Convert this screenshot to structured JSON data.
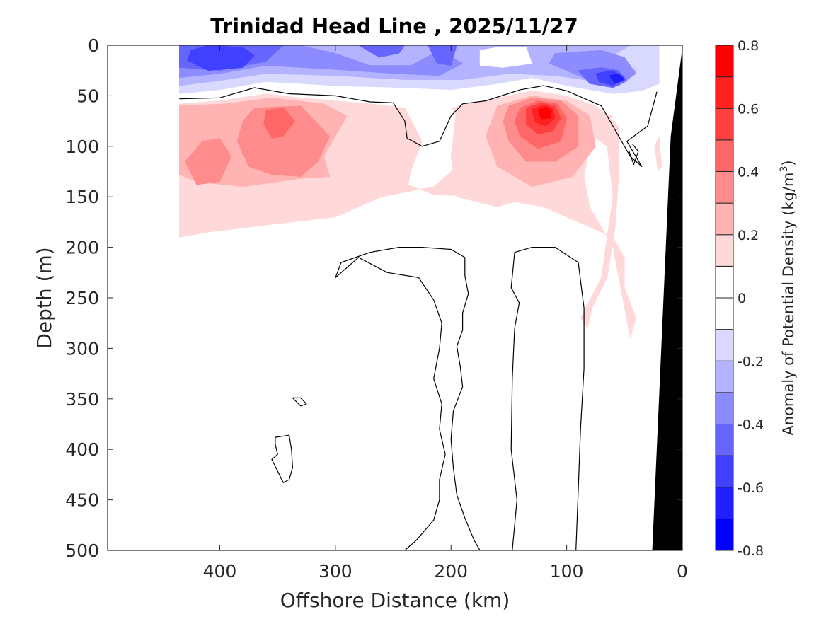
{
  "chart_data": {
    "type": "contourf",
    "title": "Trinidad Head Line , 2025/11/27",
    "xlabel": "Offshore Distance (km)",
    "ylabel": "Depth (m)",
    "xlim": [
      497,
      0
    ],
    "ylim": [
      0,
      500
    ],
    "x_reversed": true,
    "y_reversed": true,
    "xticks": [
      400,
      300,
      200,
      100,
      0
    ],
    "xtick_labels": [
      "400",
      "300",
      "200",
      "100",
      "0"
    ],
    "yticks": [
      0,
      50,
      100,
      150,
      200,
      250,
      300,
      350,
      400,
      450,
      500
    ],
    "ytick_labels": [
      "0",
      "50",
      "100",
      "150",
      "200",
      "250",
      "300",
      "350",
      "400",
      "450",
      "500"
    ],
    "colorbar": {
      "label": "Anomaly of Potential Density (kg/m",
      "label_superscript": "3",
      "label_close": ")",
      "range": [
        -0.8,
        0.8
      ],
      "levels": [
        -0.8,
        -0.7,
        -0.6,
        -0.5,
        -0.4,
        -0.3,
        -0.2,
        -0.1,
        0,
        0.1,
        0.2,
        0.3,
        0.4,
        0.5,
        0.6,
        0.7,
        0.8
      ],
      "ticks": [
        0.8,
        0.6,
        0.4,
        0.2,
        0,
        -0.2,
        -0.4,
        -0.6,
        -0.8
      ],
      "tick_labels": [
        "0.8",
        "0.6",
        "0.4",
        "0.2",
        "0",
        "-0.2",
        "-0.4",
        "-0.6",
        "-0.8"
      ],
      "colors": [
        "#0000ff",
        "#2020ff",
        "#4040ff",
        "#6666ff",
        "#8c8cff",
        "#b3b3ff",
        "#d9d9ff",
        "#ffffff",
        "#ffffff",
        "#ffd9d9",
        "#ffb3b3",
        "#ff8c8c",
        "#ff6666",
        "#ff4040",
        "#ff2020",
        "#ff0000"
      ]
    },
    "bathymetry_color": "#000000",
    "zero_contour_color": "#000000",
    "regions": [
      {
        "name": "surface-negative-anomaly",
        "value_range": [
          -0.6,
          -0.1
        ],
        "depth_range_m": [
          0,
          50
        ],
        "km_range": [
          20,
          435
        ]
      },
      {
        "name": "offshore-positive-core",
        "peak_value": 0.45,
        "depth_range_m": [
          55,
          190
        ],
        "km_range": [
          225,
          435
        ],
        "peak_km": 355,
        "peak_depth_m": 75
      },
      {
        "name": "nearshore-positive-core",
        "peak_value": 0.8,
        "depth_range_m": [
          50,
          280
        ],
        "km_range": [
          45,
          195
        ],
        "peak_km": 118,
        "peak_depth_m": 65
      },
      {
        "name": "nearshore-negative-core",
        "peak_value": -0.65,
        "depth_m": 35,
        "km": 55
      }
    ]
  }
}
